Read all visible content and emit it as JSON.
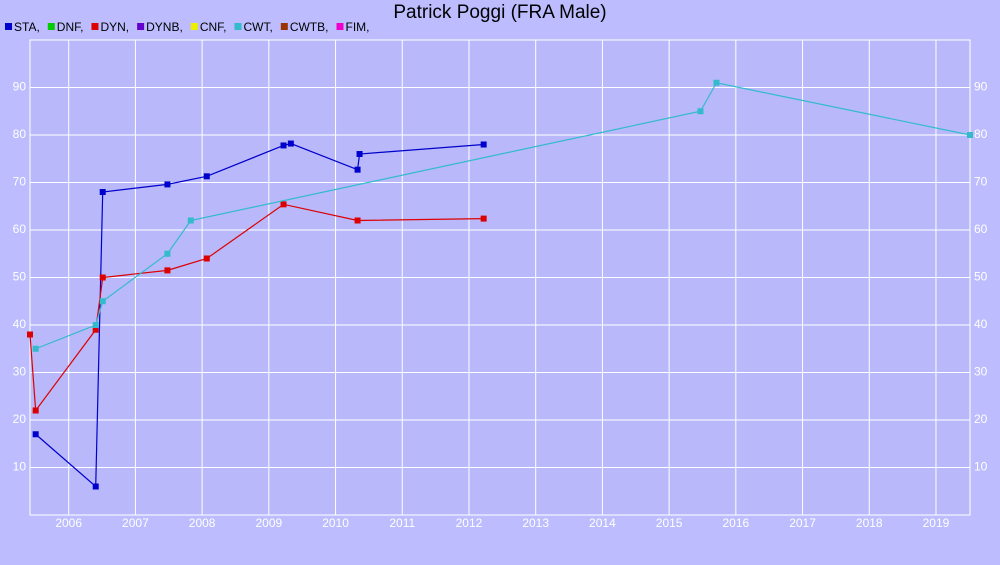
{
  "chart_data": {
    "type": "line",
    "title": "Patrick Poggi (FRA Male)",
    "xlim": [
      2005.42,
      2019.51
    ],
    "xticks": [
      2006,
      2007,
      2008,
      2009,
      2010,
      2011,
      2012,
      2013,
      2014,
      2015,
      2016,
      2017,
      2018,
      2019
    ],
    "ylim": [
      0,
      100
    ],
    "yticks": [
      10,
      20,
      30,
      40,
      50,
      60,
      70,
      80,
      90
    ],
    "grid": true,
    "series": [
      {
        "name": "STA,",
        "color": "#0000cc",
        "x": [
          2005.505,
          2006.405,
          2006.51,
          2007.48,
          2008.07,
          2009.22,
          2009.33,
          2010.33,
          2010.36,
          2012.22
        ],
        "values": [
          17,
          6,
          68,
          69.6,
          71.3,
          77.8,
          78.2,
          72.7,
          76,
          78
        ]
      },
      {
        "name": "DNF,",
        "color": "#00cc00",
        "x": [],
        "values": []
      },
      {
        "name": "DYN,",
        "color": "#dd0000",
        "x": [
          2005.42,
          2005.505,
          2006.405,
          2006.51,
          2007.48,
          2008.07,
          2009.22,
          2010.33,
          2012.22
        ],
        "values": [
          38,
          22,
          39,
          50,
          51.5,
          54,
          65.4,
          62,
          62.4
        ]
      },
      {
        "name": "DYNB,",
        "color": "#6600cc",
        "x": [],
        "values": []
      },
      {
        "name": "CNF,",
        "color": "#eeee00",
        "x": [],
        "values": []
      },
      {
        "name": "CWT,",
        "color": "#33bbcc",
        "x": [
          2005.505,
          2006.405,
          2006.51,
          2007.48,
          2007.83,
          2015.47,
          2015.71,
          2019.51
        ],
        "values": [
          35,
          40,
          45,
          55,
          62,
          85,
          91,
          80
        ]
      },
      {
        "name": "CWTB,",
        "color": "#993300",
        "x": [],
        "values": []
      },
      {
        "name": "FIM,",
        "color": "#ee00cc",
        "x": [],
        "values": []
      }
    ]
  }
}
